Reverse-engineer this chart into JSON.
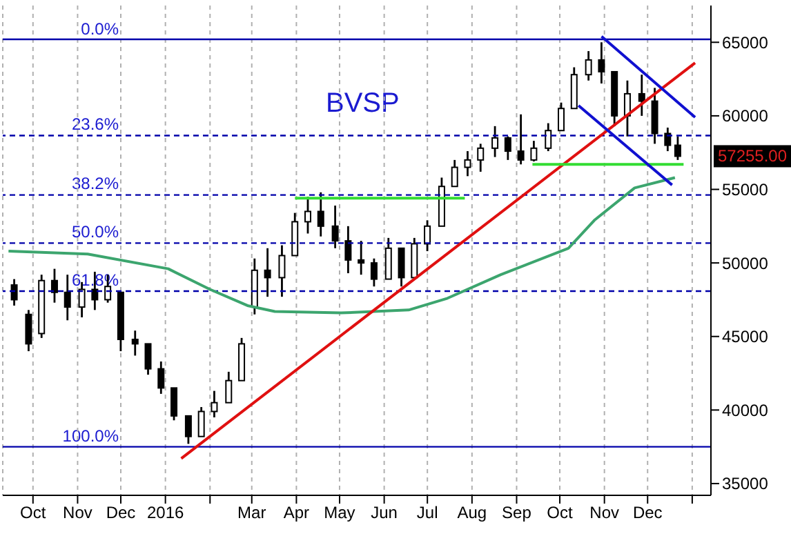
{
  "chart_data": {
    "type": "candlestick",
    "title": "BVSP",
    "color": "#000000",
    "x": [
      "2015-09-18",
      "2015-09-28",
      "2015-10-07",
      "2015-10-16",
      "2015-10-25",
      "2015-11-04",
      "2015-11-13",
      "2015-11-22",
      "2015-12-01",
      "2015-12-11",
      "2015-12-20",
      "2015-12-29",
      "2016-01-07",
      "2016-01-17",
      "2016-01-26",
      "2016-02-04",
      "2016-02-14",
      "2016-02-23",
      "2016-03-03",
      "2016-03-12",
      "2016-03-22",
      "2016-03-31",
      "2016-04-09",
      "2016-04-18",
      "2016-04-28",
      "2016-05-07",
      "2016-05-16",
      "2016-05-25",
      "2016-06-04",
      "2016-06-13",
      "2016-06-22",
      "2016-07-01",
      "2016-07-11",
      "2016-07-20",
      "2016-07-29",
      "2016-08-07",
      "2016-08-17",
      "2016-08-26",
      "2016-09-04",
      "2016-09-13",
      "2016-09-23",
      "2016-10-02",
      "2016-10-11",
      "2016-10-21",
      "2016-10-30",
      "2016-11-08",
      "2016-11-17",
      "2016-11-27",
      "2016-12-06",
      "2016-12-15",
      "2016-12-22"
    ],
    "ohlc": [
      [
        48500,
        48900,
        47100,
        47500
      ],
      [
        46500,
        46800,
        44000,
        44500
      ],
      [
        45200,
        49200,
        44900,
        48800
      ],
      [
        48800,
        49600,
        47300,
        48000
      ],
      [
        48000,
        49200,
        46100,
        47000
      ],
      [
        47000,
        48700,
        46300,
        48200
      ],
      [
        48200,
        49400,
        46800,
        47500
      ],
      [
        47500,
        49200,
        47300,
        48400
      ],
      [
        48000,
        48000,
        44000,
        44800
      ],
      [
        44800,
        45400,
        43700,
        44500
      ],
      [
        44500,
        44500,
        42400,
        42800
      ],
      [
        42800,
        43300,
        41100,
        41500
      ],
      [
        41500,
        41500,
        39300,
        39600
      ],
      [
        39600,
        39600,
        37700,
        38200
      ],
      [
        38200,
        40200,
        38200,
        39900
      ],
      [
        39900,
        41300,
        39500,
        40500
      ],
      [
        40500,
        42600,
        40500,
        42000
      ],
      [
        42000,
        44900,
        42000,
        44500
      ],
      [
        47000,
        50300,
        46500,
        49500
      ],
      [
        49500,
        51000,
        47700,
        49000
      ],
      [
        49000,
        51200,
        47700,
        50500
      ],
      [
        50500,
        53400,
        50500,
        52800
      ],
      [
        52800,
        54500,
        52000,
        53500
      ],
      [
        53500,
        54800,
        51800,
        52500
      ],
      [
        52500,
        53900,
        51000,
        51500
      ],
      [
        51500,
        52500,
        49300,
        50200
      ],
      [
        50200,
        51500,
        49200,
        50000
      ],
      [
        50000,
        50300,
        48400,
        48900
      ],
      [
        48900,
        51700,
        48900,
        51000
      ],
      [
        51000,
        51000,
        48400,
        49000
      ],
      [
        49000,
        51700,
        49000,
        51300
      ],
      [
        51300,
        52900,
        50800,
        52500
      ],
      [
        52500,
        55800,
        52500,
        55200
      ],
      [
        55200,
        57000,
        55200,
        56500
      ],
      [
        56500,
        57600,
        55900,
        57000
      ],
      [
        57000,
        58100,
        56200,
        57800
      ],
      [
        57800,
        59300,
        57200,
        58500
      ],
      [
        58500,
        58600,
        57000,
        57600
      ],
      [
        57600,
        60100,
        56700,
        57000
      ],
      [
        57000,
        58300,
        56900,
        57800
      ],
      [
        57800,
        59500,
        57600,
        59000
      ],
      [
        59000,
        60900,
        59000,
        60500
      ],
      [
        60500,
        63300,
        60500,
        62800
      ],
      [
        62800,
        64400,
        62400,
        63800
      ],
      [
        63800,
        65000,
        62200,
        63000
      ],
      [
        63000,
        63000,
        59300,
        60000
      ],
      [
        60000,
        62400,
        58600,
        61500
      ],
      [
        61500,
        62800,
        60000,
        61000
      ],
      [
        61000,
        61900,
        58100,
        58800
      ],
      [
        58800,
        59200,
        57600,
        58000
      ],
      [
        58000,
        58600,
        57000,
        57255
      ]
    ],
    "series": [
      {
        "type": "line",
        "color": "#3ca56e",
        "x": [
          "2015-09-14",
          "2015-11-08",
          "2016-01-03",
          "2016-02-01",
          "2016-02-27",
          "2016-03-17",
          "2016-05-02",
          "2016-06-18",
          "2016-07-15",
          "2016-08-21",
          "2016-10-07",
          "2016-10-25",
          "2016-11-22",
          "2016-12-20"
        ],
        "values": [
          50800,
          50600,
          49600,
          48200,
          47100,
          46700,
          46600,
          46800,
          47600,
          49200,
          51000,
          52900,
          55100,
          55800
        ]
      },
      {
        "type": "line",
        "color": "#e01010",
        "x": [
          "2016-01-12",
          "2017-01-03"
        ],
        "values": [
          36700,
          63600
        ]
      },
      {
        "type": "line",
        "color": "#33dd33",
        "x": [
          "2016-03-31",
          "2016-07-27"
        ],
        "values": [
          54400,
          54400
        ]
      },
      {
        "type": "line",
        "color": "#33dd33",
        "x": [
          "2016-09-12",
          "2016-12-26"
        ],
        "values": [
          56700,
          56700
        ]
      },
      {
        "type": "line",
        "color": "#1010d0",
        "x": [
          "2016-10-30",
          "2017-01-03"
        ],
        "values": [
          65400,
          59900
        ]
      },
      {
        "type": "line",
        "color": "#1010d0",
        "x": [
          "2016-10-14",
          "2016-12-18"
        ],
        "values": [
          60700,
          55300
        ]
      }
    ],
    "xlim": [
      "2015-09-10",
      "2017-01-14"
    ],
    "xticks": [
      {
        "value": "2015-10-01",
        "label": "Oct"
      },
      {
        "value": "2015-11-01",
        "label": "Nov"
      },
      {
        "value": "2015-12-01",
        "label": "Dec"
      },
      {
        "value": "2016-01-01",
        "label": "2016"
      },
      {
        "value": "2016-02-01",
        "label": null
      },
      {
        "value": "2016-03-01",
        "label": "Mar"
      },
      {
        "value": "2016-04-01",
        "label": "Apr"
      },
      {
        "value": "2016-05-01",
        "label": "May"
      },
      {
        "value": "2016-06-01",
        "label": "Jun"
      },
      {
        "value": "2016-07-01",
        "label": "Jul"
      },
      {
        "value": "2016-08-01",
        "label": "Aug"
      },
      {
        "value": "2016-09-01",
        "label": "Sep"
      },
      {
        "value": "2016-10-01",
        "label": "Oct"
      },
      {
        "value": "2016-11-01",
        "label": "Nov"
      },
      {
        "value": "2016-12-01",
        "label": "Dec"
      },
      {
        "value": "2017-01-01",
        "label": null
      }
    ],
    "ylim": [
      34200,
      67500
    ],
    "yticks": [
      35000,
      40000,
      45000,
      50000,
      55000,
      60000,
      65000
    ],
    "grid": "x",
    "ref_lines": [
      {
        "axis": "y",
        "value": 65200,
        "color": "#0000aa",
        "line_style": "solid"
      },
      {
        "axis": "y",
        "value": 58660,
        "color": "#0000aa",
        "line_style": "dashed"
      },
      {
        "axis": "y",
        "value": 54620,
        "color": "#0000aa",
        "line_style": "dashed"
      },
      {
        "axis": "y",
        "value": 51350,
        "color": "#0000aa",
        "line_style": "dashed"
      },
      {
        "axis": "y",
        "value": 48080,
        "color": "#0000aa",
        "line_style": "dashed"
      },
      {
        "axis": "y",
        "value": 37500,
        "color": "#0000aa",
        "line_style": "solid"
      }
    ],
    "annotations": [
      {
        "text": "0.0%",
        "y": 65200
      },
      {
        "text": "23.6%",
        "y": 58660
      },
      {
        "text": "38.2%",
        "y": 54620
      },
      {
        "text": "50.0%",
        "y": 51350
      },
      {
        "text": "61.8%",
        "y": 48080
      },
      {
        "text": "100.0%",
        "y": 37500
      },
      "57255.00"
    ]
  }
}
